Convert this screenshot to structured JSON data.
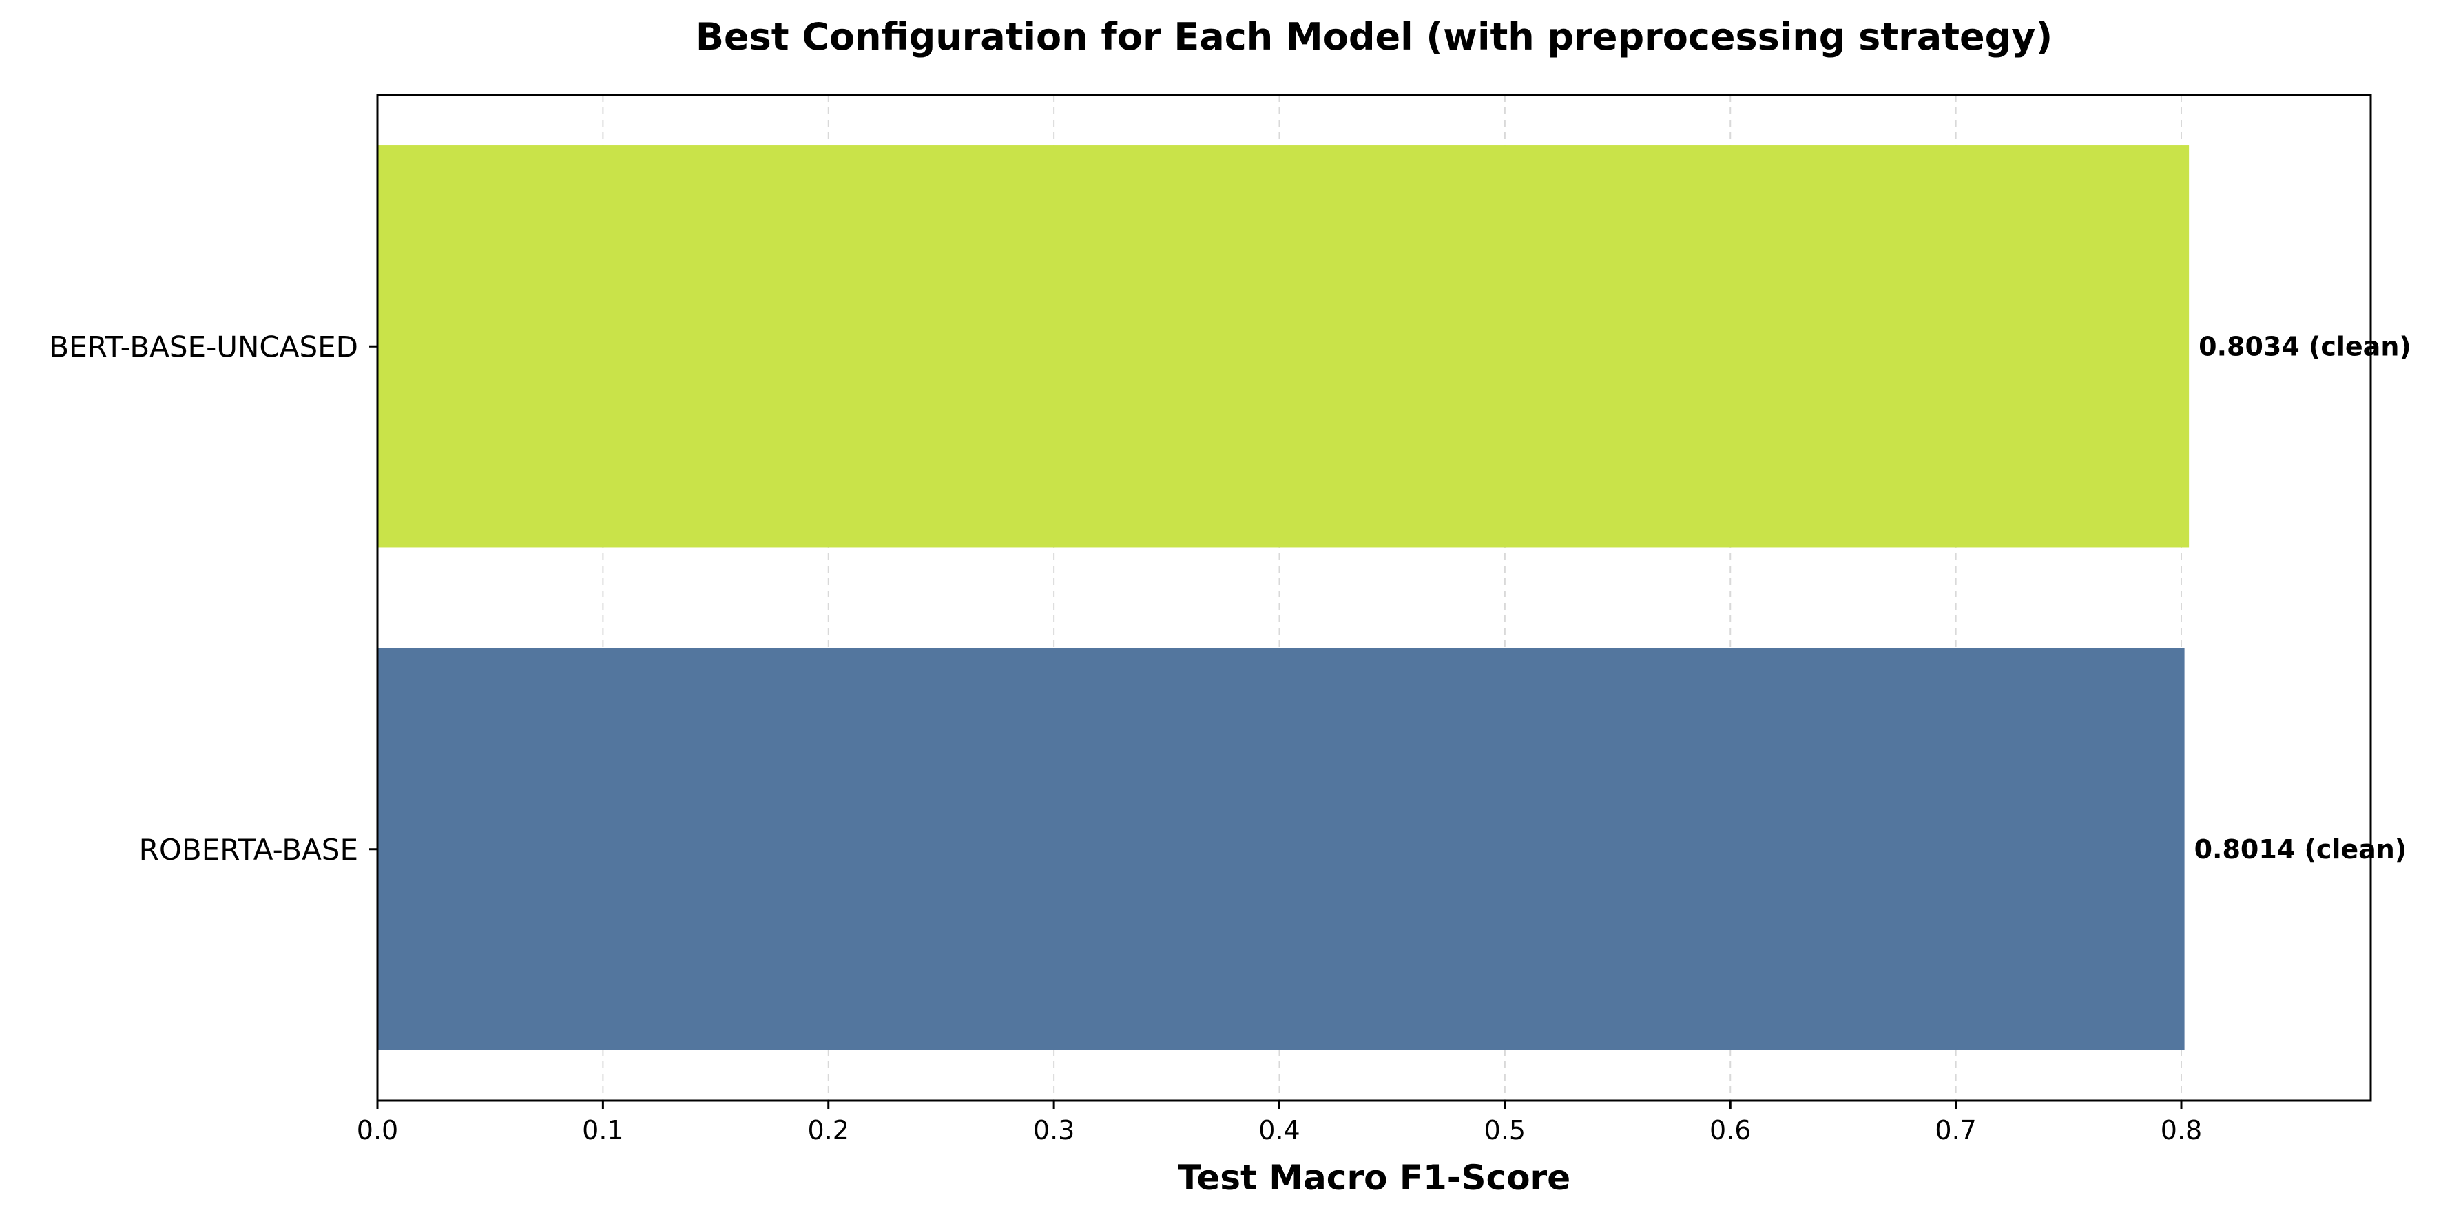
{
  "chart_data": {
    "type": "bar",
    "orientation": "horizontal",
    "title": "Best Configuration for Each Model (with preprocessing strategy)",
    "xlabel": "Test Macro F1-Score",
    "ylabel": "",
    "categories": [
      "BERT-BASE-UNCASED",
      "ROBERTA-BASE"
    ],
    "values": [
      0.8034,
      0.8014
    ],
    "value_labels": [
      "0.8034 (clean)",
      "0.8014 (clean)"
    ],
    "bar_colors": [
      "#c9e349",
      "#53769e"
    ],
    "xlim": [
      0,
      0.884
    ],
    "xticks": [
      0.0,
      0.1,
      0.2,
      0.3,
      0.4,
      0.5,
      0.6,
      0.7,
      0.8
    ],
    "xtick_labels": [
      "0.0",
      "0.1",
      "0.2",
      "0.3",
      "0.4",
      "0.5",
      "0.6",
      "0.7",
      "0.8"
    ],
    "grid": {
      "x": true,
      "y": false,
      "style": "dashed"
    },
    "legend": "none"
  }
}
